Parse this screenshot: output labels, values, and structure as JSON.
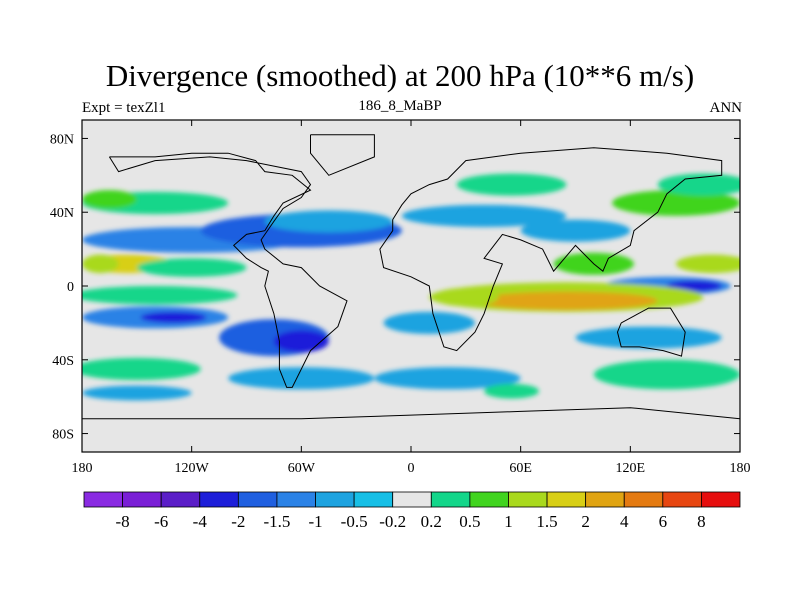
{
  "header": {
    "title": "Divergence (smoothed) at 200 hPa (10**6 m/s)",
    "left": "Expt = texZl1",
    "center": "186_8_MaBP",
    "right": "ANN"
  },
  "chart_data": {
    "type": "heatmap",
    "title": "Divergence (smoothed) at 200 hPa (10**6 m/s)",
    "xlabel": "",
    "ylabel": "",
    "xlim": [
      -180,
      180
    ],
    "ylim": [
      -90,
      90
    ],
    "x_ticks": [
      {
        "value": -180,
        "label": "180"
      },
      {
        "value": -120,
        "label": "120W"
      },
      {
        "value": -60,
        "label": "60W"
      },
      {
        "value": 0,
        "label": "0"
      },
      {
        "value": 60,
        "label": "60E"
      },
      {
        "value": 120,
        "label": "120E"
      },
      {
        "value": 180,
        "label": "180"
      }
    ],
    "y_ticks": [
      {
        "value": 80,
        "label": "80N"
      },
      {
        "value": 40,
        "label": "40N"
      },
      {
        "value": 0,
        "label": "0"
      },
      {
        "value": -40,
        "label": "40S"
      },
      {
        "value": -80,
        "label": "80S"
      }
    ],
    "colorbar": {
      "colors": [
        "#8a2be2",
        "#7a1fd6",
        "#5b1ec8",
        "#1d1ed9",
        "#1f5fe0",
        "#2b82e6",
        "#1ea3e0",
        "#17bfe6",
        "#e6e6e6",
        "#13d68a",
        "#41d41f",
        "#a9d91d",
        "#d8cf16",
        "#e0a412",
        "#e47a11",
        "#e74611",
        "#e60e0e"
      ],
      "labels": [
        "-8",
        "-6",
        "-4",
        "-2",
        "-1.5",
        "-1",
        "-0.5",
        "-0.2",
        "0.2",
        "0.5",
        "1",
        "1.5",
        "2",
        "4",
        "6",
        "8"
      ]
    },
    "blobs": [
      {
        "lon": -120,
        "lat": 25,
        "rlon": 60,
        "rlat": 7,
        "v": -1
      },
      {
        "lon": -60,
        "lat": 30,
        "rlon": 55,
        "rlat": 9,
        "v": -1.5
      },
      {
        "lon": -45,
        "lat": 35,
        "rlon": 35,
        "rlat": 6,
        "v": -0.5
      },
      {
        "lon": 40,
        "lat": 38,
        "rlon": 45,
        "rlat": 6,
        "v": -0.5
      },
      {
        "lon": 90,
        "lat": 30,
        "rlon": 30,
        "rlat": 6,
        "v": -0.5
      },
      {
        "lon": -140,
        "lat": 45,
        "rlon": 40,
        "rlat": 6,
        "v": 0.5
      },
      {
        "lon": -165,
        "lat": 47,
        "rlon": 15,
        "rlat": 5,
        "v": 1
      },
      {
        "lon": 145,
        "lat": 45,
        "rlon": 35,
        "rlat": 7,
        "v": 1
      },
      {
        "lon": 160,
        "lat": 55,
        "rlon": 25,
        "rlat": 6,
        "v": 0.5
      },
      {
        "lon": 55,
        "lat": 55,
        "rlon": 30,
        "rlat": 6,
        "v": 0.5
      },
      {
        "lon": -155,
        "lat": 12,
        "rlon": 25,
        "rlat": 5,
        "v": 2
      },
      {
        "lon": -170,
        "lat": 12,
        "rlon": 10,
        "rlat": 5,
        "v": 1.5
      },
      {
        "lon": -120,
        "lat": 10,
        "rlon": 30,
        "rlat": 5,
        "v": 0.5
      },
      {
        "lon": 100,
        "lat": 12,
        "rlon": 22,
        "rlat": 6,
        "v": 1
      },
      {
        "lon": 165,
        "lat": 12,
        "rlon": 20,
        "rlat": 5,
        "v": 1.5
      },
      {
        "lon": -140,
        "lat": -5,
        "rlon": 45,
        "rlat": 5,
        "v": 0.5
      },
      {
        "lon": 140,
        "lat": 0,
        "rlon": 35,
        "rlat": 5,
        "v": -1
      },
      {
        "lon": 155,
        "lat": 0,
        "rlon": 15,
        "rlat": 3,
        "v": -2
      },
      {
        "lon": 85,
        "lat": -6,
        "rlon": 75,
        "rlat": 8,
        "v": 1.5
      },
      {
        "lon": 85,
        "lat": -8,
        "rlon": 50,
        "rlat": 5,
        "v": 4
      },
      {
        "lon": 30,
        "lat": -6,
        "rlon": 18,
        "rlat": 5,
        "v": 1.5
      },
      {
        "lon": -140,
        "lat": -17,
        "rlon": 40,
        "rlat": 6,
        "v": -1
      },
      {
        "lon": -130,
        "lat": -17,
        "rlon": 18,
        "rlat": 3,
        "v": -2
      },
      {
        "lon": -75,
        "lat": -28,
        "rlon": 30,
        "rlat": 10,
        "v": -1.5
      },
      {
        "lon": -60,
        "lat": -30,
        "rlon": 15,
        "rlat": 6,
        "v": -2
      },
      {
        "lon": 10,
        "lat": -20,
        "rlon": 25,
        "rlat": 6,
        "v": -0.5
      },
      {
        "lon": 130,
        "lat": -28,
        "rlon": 40,
        "rlat": 6,
        "v": -0.5
      },
      {
        "lon": -150,
        "lat": -45,
        "rlon": 35,
        "rlat": 6,
        "v": 0.5
      },
      {
        "lon": 140,
        "lat": -48,
        "rlon": 40,
        "rlat": 8,
        "v": 0.5
      },
      {
        "lon": -60,
        "lat": -50,
        "rlon": 40,
        "rlat": 6,
        "v": -0.5
      },
      {
        "lon": 20,
        "lat": -50,
        "rlon": 40,
        "rlat": 6,
        "v": -0.5
      },
      {
        "lon": -150,
        "lat": -58,
        "rlon": 30,
        "rlat": 4,
        "v": -0.5
      },
      {
        "lon": 55,
        "lat": -57,
        "rlon": 15,
        "rlat": 4,
        "v": 0.5
      }
    ],
    "coastline": [
      [
        [
          -165,
          70
        ],
        [
          -140,
          70
        ],
        [
          -120,
          72
        ],
        [
          -100,
          72
        ],
        [
          -85,
          68
        ],
        [
          -80,
          62
        ],
        [
          -65,
          60
        ],
        [
          -55,
          52
        ],
        [
          -70,
          45
        ],
        [
          -75,
          38
        ],
        [
          -80,
          30
        ],
        [
          -90,
          28
        ],
        [
          -97,
          22
        ],
        [
          -90,
          15
        ],
        [
          -82,
          10
        ],
        [
          -78,
          8
        ],
        [
          -80,
          0
        ],
        [
          -75,
          -15
        ],
        [
          -72,
          -30
        ],
        [
          -72,
          -45
        ],
        [
          -68,
          -55
        ],
        [
          -65,
          -55
        ],
        [
          -55,
          -35
        ],
        [
          -40,
          -22
        ],
        [
          -35,
          -8
        ],
        [
          -50,
          0
        ],
        [
          -60,
          10
        ],
        [
          -70,
          12
        ],
        [
          -80,
          20
        ],
        [
          -82,
          25
        ],
        [
          -75,
          35
        ],
        [
          -70,
          42
        ],
        [
          -60,
          48
        ],
        [
          -55,
          55
        ],
        [
          -60,
          62
        ],
        [
          -75,
          65
        ],
        [
          -90,
          68
        ],
        [
          -110,
          70
        ],
        [
          -140,
          68
        ],
        [
          -160,
          62
        ],
        [
          -165,
          70
        ]
      ],
      [
        [
          -10,
          36
        ],
        [
          -5,
          44
        ],
        [
          0,
          50
        ],
        [
          10,
          55
        ],
        [
          20,
          58
        ],
        [
          30,
          68
        ],
        [
          60,
          72
        ],
        [
          100,
          75
        ],
        [
          140,
          72
        ],
        [
          170,
          68
        ],
        [
          170,
          60
        ],
        [
          150,
          58
        ],
        [
          140,
          50
        ],
        [
          135,
          40
        ],
        [
          122,
          30
        ],
        [
          120,
          22
        ],
        [
          108,
          15
        ],
        [
          105,
          8
        ],
        [
          100,
          12
        ],
        [
          90,
          22
        ],
        [
          78,
          8
        ],
        [
          72,
          20
        ],
        [
          60,
          25
        ],
        [
          50,
          28
        ],
        [
          40,
          15
        ],
        [
          50,
          12
        ],
        [
          45,
          0
        ],
        [
          40,
          -15
        ],
        [
          35,
          -25
        ],
        [
          25,
          -35
        ],
        [
          18,
          -33
        ],
        [
          12,
          -15
        ],
        [
          10,
          0
        ],
        [
          0,
          5
        ],
        [
          -15,
          10
        ],
        [
          -17,
          20
        ],
        [
          -10,
          30
        ],
        [
          -10,
          36
        ]
      ],
      [
        [
          115,
          -20
        ],
        [
          130,
          -12
        ],
        [
          142,
          -12
        ],
        [
          150,
          -25
        ],
        [
          148,
          -38
        ],
        [
          138,
          -35
        ],
        [
          125,
          -33
        ],
        [
          115,
          -33
        ],
        [
          113,
          -25
        ],
        [
          115,
          -20
        ]
      ],
      [
        [
          -55,
          82
        ],
        [
          -20,
          82
        ],
        [
          -20,
          70
        ],
        [
          -45,
          60
        ],
        [
          -55,
          72
        ],
        [
          -55,
          82
        ]
      ],
      [
        [
          -180,
          -72
        ],
        [
          -60,
          -72
        ],
        [
          0,
          -70
        ],
        [
          60,
          -68
        ],
        [
          120,
          -66
        ],
        [
          180,
          -72
        ]
      ]
    ]
  }
}
